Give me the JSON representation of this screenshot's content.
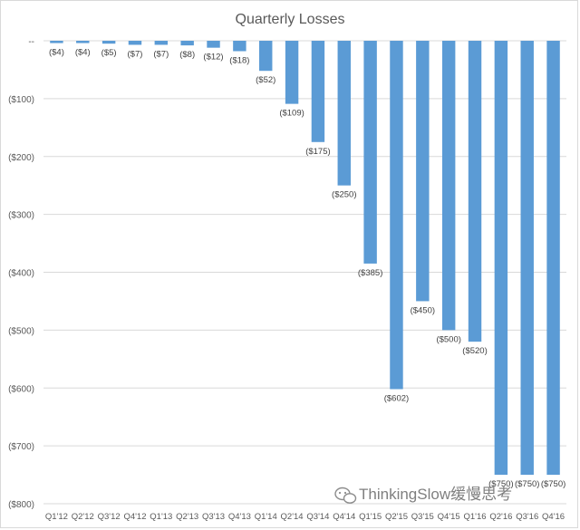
{
  "chart_data": {
    "type": "bar",
    "title": "Quarterly Losses",
    "categories": [
      "Q1'12",
      "Q2'12",
      "Q3'12",
      "Q4'12",
      "Q1'13",
      "Q2'13",
      "Q3'13",
      "Q4'13",
      "Q1'14",
      "Q2'14",
      "Q3'14",
      "Q4'14",
      "Q1'15",
      "Q2'15",
      "Q3'15",
      "Q4'15",
      "Q1'16",
      "Q2'16",
      "Q3'16",
      "Q4'16"
    ],
    "values": [
      -4,
      -4,
      -5,
      -7,
      -7,
      -8,
      -12,
      -18,
      -52,
      -109,
      -175,
      -250,
      -385,
      -602,
      -450,
      -500,
      -520,
      -750,
      -750,
      -750
    ],
    "data_labels": [
      "($4)",
      "($4)",
      "($5)",
      "($7)",
      "($7)",
      "($8)",
      "($12)",
      "($18)",
      "($52)",
      "($109)",
      "($175)",
      "($250)",
      "($385)",
      "($602)",
      "($450)",
      "($500)",
      "($520)",
      "($750)",
      "($750)",
      "($750)"
    ],
    "y_ticks": [
      0,
      -100,
      -200,
      -300,
      -400,
      -500,
      -600,
      -700,
      -800
    ],
    "y_tick_labels": [
      "--",
      "($100)",
      "($200)",
      "($300)",
      "($400)",
      "($500)",
      "($600)",
      "($700)",
      "($800)"
    ],
    "ylim": [
      -800,
      0
    ],
    "xlabel": "",
    "ylabel": "",
    "grid": true,
    "bar_color": "#5b9bd5"
  },
  "watermark": {
    "text": "ThinkingSlow缓慢思考",
    "icon": "wechat-icon"
  }
}
